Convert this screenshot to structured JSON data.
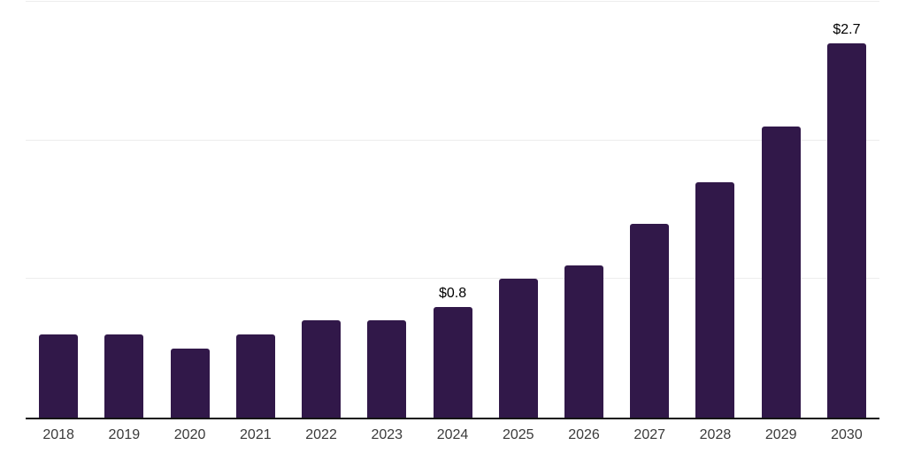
{
  "chart_data": {
    "type": "bar",
    "title": "",
    "xlabel": "",
    "ylabel": "",
    "categories": [
      "2018",
      "2019",
      "2020",
      "2021",
      "2022",
      "2023",
      "2024",
      "2025",
      "2026",
      "2027",
      "2028",
      "2029",
      "2030"
    ],
    "values": [
      0.6,
      0.6,
      0.5,
      0.6,
      0.7,
      0.7,
      0.8,
      1.0,
      1.1,
      1.4,
      1.7,
      2.1,
      2.7
    ],
    "data_labels": {
      "2024": "$0.8",
      "2030": "$2.7"
    },
    "ylim": [
      0,
      3
    ],
    "gridlines": [
      1,
      2,
      3
    ],
    "grid": "horizontal-only",
    "legend": "none",
    "colors": {
      "bar": "#311849",
      "axis_line": "#141414",
      "gridline": "#ededed",
      "tick_label": "#3a3a3a",
      "data_label": "#000000",
      "background": "#ffffff"
    }
  }
}
